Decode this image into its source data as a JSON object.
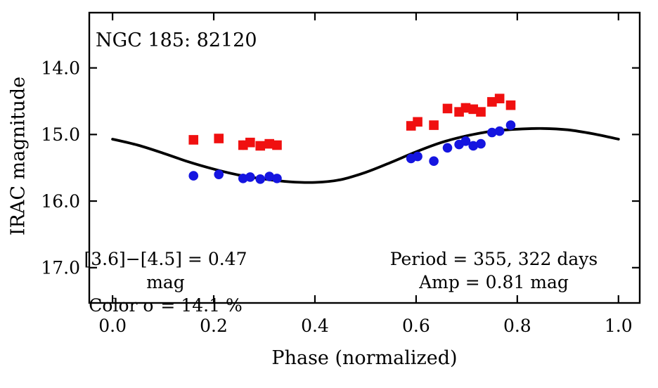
{
  "figure": {
    "title_annotation": "NGC 185: 82120",
    "xlabel": "Phase (normalized)",
    "ylabel": "IRAC magnitude",
    "annotations": {
      "color_diff": "[3.6]−[4.5] = 0.47 mag",
      "color_sigma": "Color σ = 14.1 %",
      "period": "Period = 355, 322 days",
      "amp": "Amp = 0.81 mag"
    }
  },
  "chart_data": {
    "type": "scatter",
    "title": "NGC 185: 82120",
    "xlabel": "Phase (normalized)",
    "ylabel": "IRAC magnitude",
    "grid": false,
    "legend": "none",
    "y_axis_inverted": true,
    "xlim": [
      -0.046,
      1.042
    ],
    "ylim": [
      13.17,
      17.53
    ],
    "xticks": [
      0.0,
      0.2,
      0.4,
      0.6,
      0.8,
      1.0
    ],
    "xtick_labels": [
      "0.0",
      "0.2",
      "0.4",
      "0.6",
      "0.8",
      "1.0"
    ],
    "yticks": [
      14.0,
      15.0,
      16.0,
      17.0
    ],
    "ytick_labels": [
      "14.0",
      "15.0",
      "16.0",
      "17.0"
    ],
    "series": [
      {
        "name": "red-squares",
        "marker": "square",
        "color": "#f01010",
        "x": [
          0.16,
          0.21,
          0.258,
          0.272,
          0.292,
          0.31,
          0.325,
          0.59,
          0.603,
          0.635,
          0.662,
          0.685,
          0.698,
          0.713,
          0.728,
          0.75,
          0.765,
          0.787
        ],
        "y": [
          15.08,
          15.06,
          15.16,
          15.12,
          15.17,
          15.14,
          15.16,
          14.87,
          14.81,
          14.86,
          14.61,
          14.66,
          14.6,
          14.62,
          14.66,
          14.51,
          14.46,
          14.56
        ],
        "yerr": [
          0.06,
          0.05,
          0.07,
          0.06,
          0.06,
          0.06,
          0.06,
          0.06,
          0.06,
          0.05,
          0.06,
          0.06,
          0.07,
          0.06,
          0.06,
          0.06,
          0.06,
          0.05
        ]
      },
      {
        "name": "blue-circles",
        "marker": "circle",
        "color": "#1515e0",
        "x": [
          0.16,
          0.21,
          0.258,
          0.272,
          0.292,
          0.31,
          0.325,
          0.59,
          0.603,
          0.635,
          0.662,
          0.685,
          0.698,
          0.713,
          0.728,
          0.75,
          0.765,
          0.787
        ],
        "y": [
          15.62,
          15.6,
          15.66,
          15.64,
          15.67,
          15.63,
          15.66,
          15.36,
          15.33,
          15.4,
          15.2,
          15.15,
          15.1,
          15.17,
          15.14,
          14.97,
          14.95,
          14.86
        ],
        "yerr": [
          0.06,
          0.05,
          0.07,
          0.06,
          0.06,
          0.06,
          0.06,
          0.06,
          0.05,
          0.06,
          0.06,
          0.06,
          0.07,
          0.06,
          0.06,
          0.06,
          0.06,
          0.06
        ]
      }
    ],
    "model_curve": {
      "color": "#000000",
      "x": [
        0.0,
        0.05,
        0.1,
        0.15,
        0.2,
        0.25,
        0.3,
        0.35,
        0.4,
        0.45,
        0.5,
        0.55,
        0.6,
        0.65,
        0.7,
        0.75,
        0.8,
        0.85,
        0.9,
        0.95,
        1.0
      ],
      "y": [
        15.07,
        15.16,
        15.28,
        15.41,
        15.52,
        15.61,
        15.67,
        15.71,
        15.72,
        15.68,
        15.57,
        15.42,
        15.26,
        15.12,
        15.02,
        14.95,
        14.92,
        14.91,
        14.93,
        14.99,
        15.07
      ]
    }
  }
}
